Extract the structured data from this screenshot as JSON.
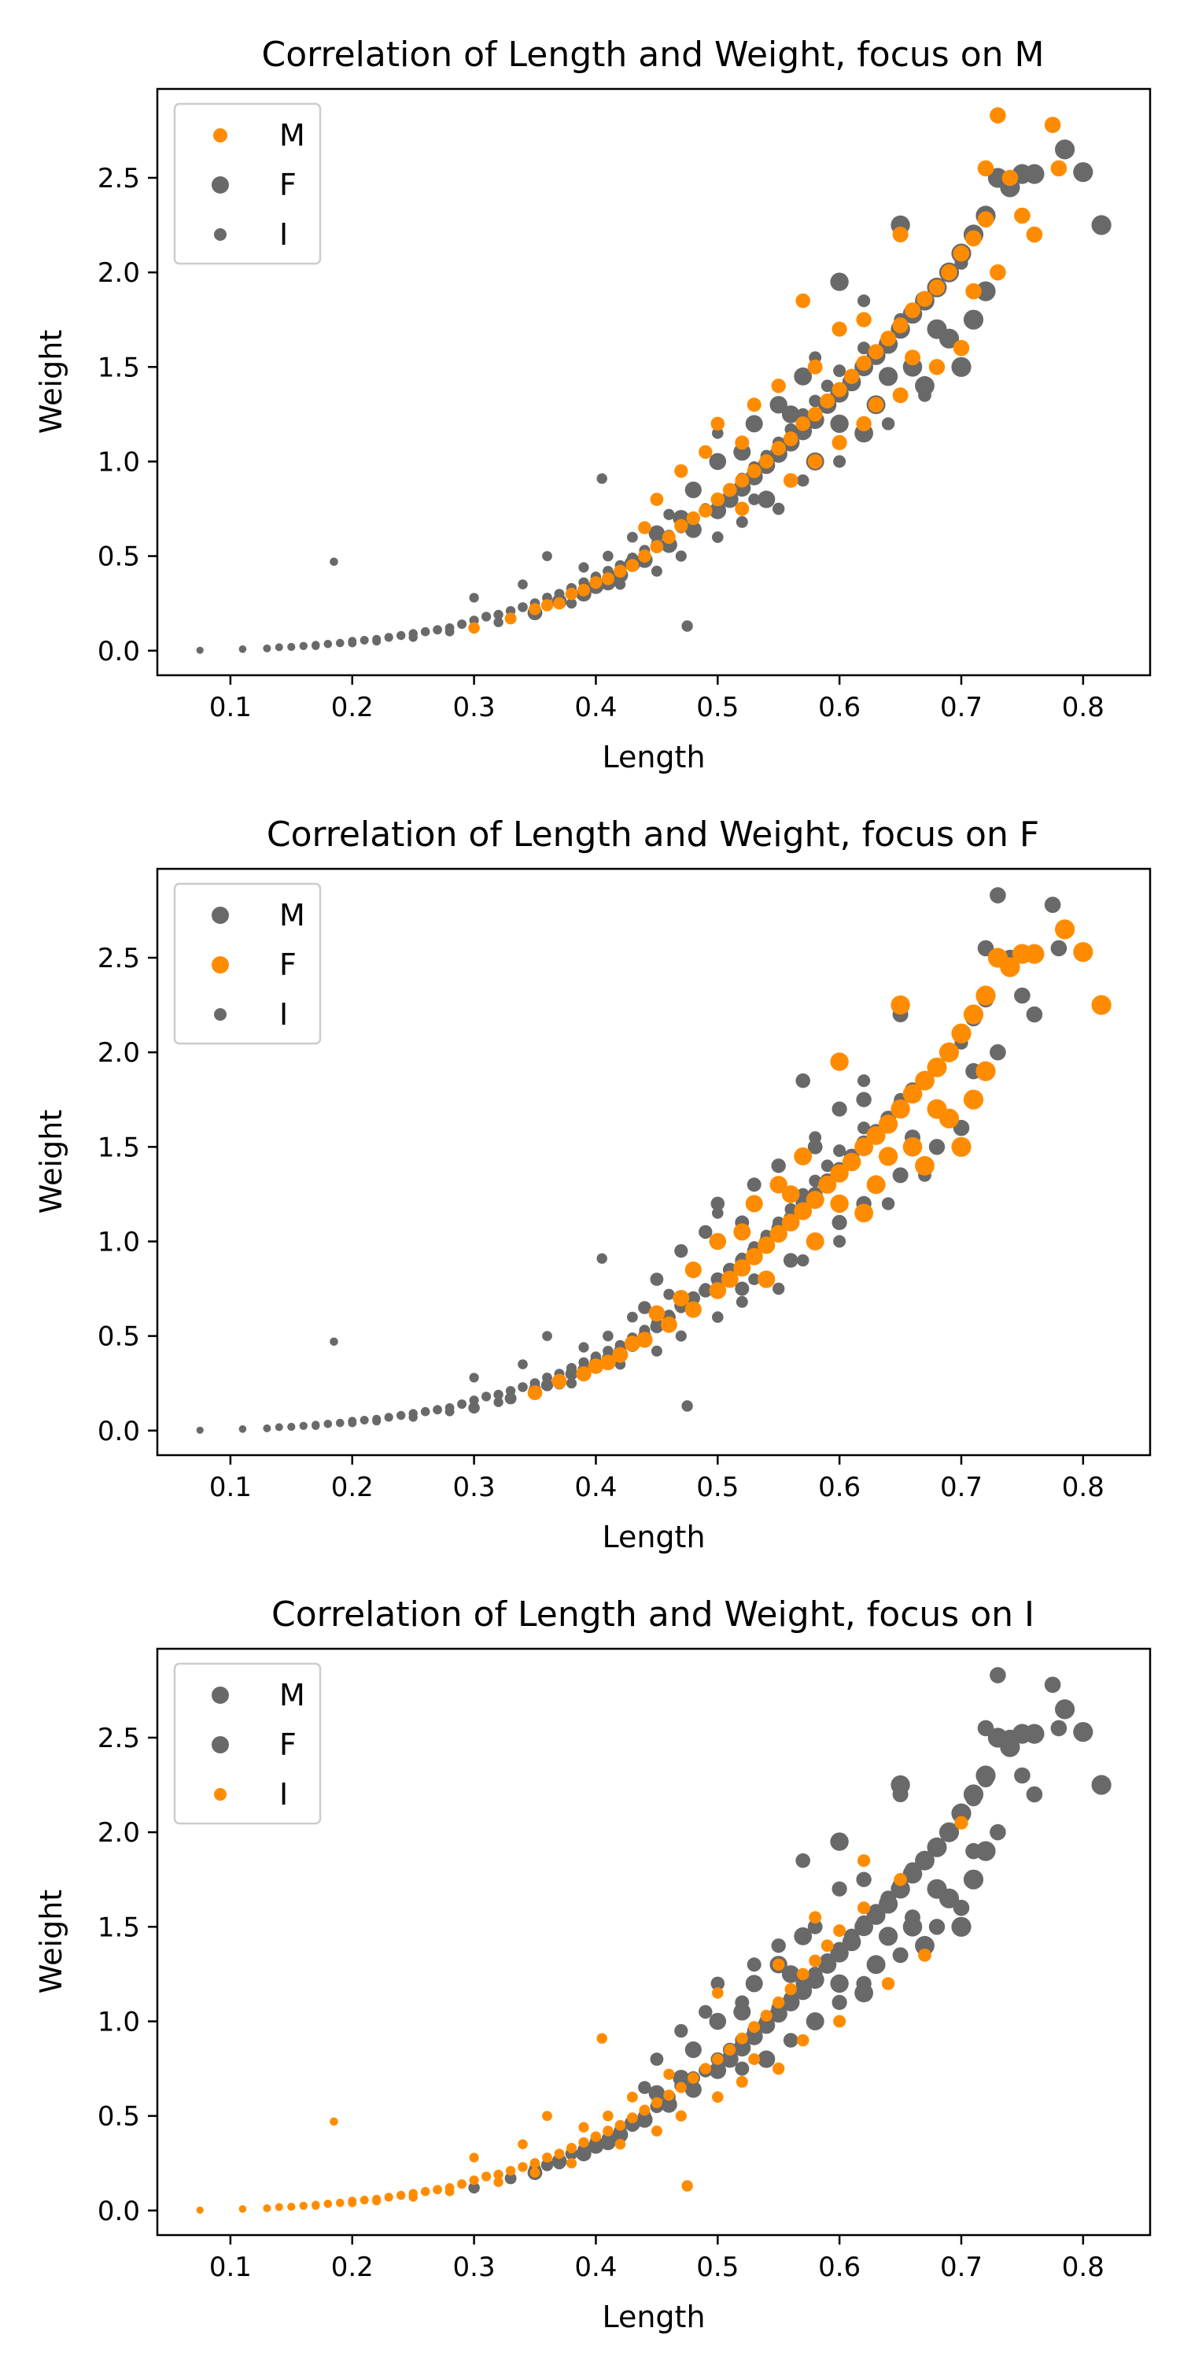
{
  "colors": {
    "highlight": "#ff8c00",
    "muted": "#696969"
  },
  "chart_data": [
    {
      "type": "scatter",
      "title": "Correlation of Length and Weight, focus on M",
      "xlabel": "Length",
      "ylabel": "Weight",
      "focus": "M",
      "xlim": [
        0.04,
        0.855
      ],
      "ylim": [
        -0.13,
        2.97
      ],
      "xticks": [
        "0.1",
        "0.2",
        "0.3",
        "0.4",
        "0.5",
        "0.6",
        "0.7",
        "0.8"
      ],
      "yticks": [
        "0.0",
        "0.5",
        "1.0",
        "1.5",
        "2.0",
        "2.5"
      ],
      "grid": false,
      "legend": "top-left",
      "legend_entries": [
        "M",
        "F",
        "I"
      ],
      "series": [
        {
          "name": "M",
          "color": "#ff8c00"
        },
        {
          "name": "F",
          "color": "#696969"
        },
        {
          "name": "I",
          "color": "#696969"
        }
      ]
    },
    {
      "type": "scatter",
      "title": "Correlation of Length and Weight, focus on F",
      "xlabel": "Length",
      "ylabel": "Weight",
      "focus": "F",
      "xlim": [
        0.04,
        0.855
      ],
      "ylim": [
        -0.13,
        2.97
      ],
      "xticks": [
        "0.1",
        "0.2",
        "0.3",
        "0.4",
        "0.5",
        "0.6",
        "0.7",
        "0.8"
      ],
      "yticks": [
        "0.0",
        "0.5",
        "1.0",
        "1.5",
        "2.0",
        "2.5"
      ],
      "grid": false,
      "legend": "top-left",
      "legend_entries": [
        "M",
        "F",
        "I"
      ],
      "series": [
        {
          "name": "M",
          "color": "#696969"
        },
        {
          "name": "F",
          "color": "#ff8c00"
        },
        {
          "name": "I",
          "color": "#696969"
        }
      ]
    },
    {
      "type": "scatter",
      "title": "Correlation of Length and Weight, focus on I",
      "xlabel": "Length",
      "ylabel": "Weight",
      "focus": "I",
      "xlim": [
        0.04,
        0.855
      ],
      "ylim": [
        -0.13,
        2.97
      ],
      "xticks": [
        "0.1",
        "0.2",
        "0.3",
        "0.4",
        "0.5",
        "0.6",
        "0.7",
        "0.8"
      ],
      "yticks": [
        "0.0",
        "0.5",
        "1.0",
        "1.5",
        "2.0",
        "2.5"
      ],
      "grid": false,
      "legend": "top-left",
      "legend_entries": [
        "M",
        "F",
        "I"
      ],
      "series": [
        {
          "name": "M",
          "color": "#696969"
        },
        {
          "name": "F",
          "color": "#696969"
        },
        {
          "name": "I",
          "color": "#ff8c00"
        }
      ]
    }
  ],
  "points": {
    "M": [
      [
        0.35,
        0.22
      ],
      [
        0.38,
        0.3
      ],
      [
        0.4,
        0.36
      ],
      [
        0.42,
        0.42
      ],
      [
        0.44,
        0.5
      ],
      [
        0.45,
        0.55
      ],
      [
        0.46,
        0.6
      ],
      [
        0.47,
        0.66
      ],
      [
        0.48,
        0.7
      ],
      [
        0.49,
        0.74
      ],
      [
        0.5,
        0.8
      ],
      [
        0.51,
        0.85
      ],
      [
        0.52,
        0.9
      ],
      [
        0.53,
        0.95
      ],
      [
        0.54,
        1.0
      ],
      [
        0.55,
        1.07
      ],
      [
        0.56,
        1.12
      ],
      [
        0.57,
        1.2
      ],
      [
        0.58,
        1.25
      ],
      [
        0.59,
        1.32
      ],
      [
        0.6,
        1.38
      ],
      [
        0.61,
        1.45
      ],
      [
        0.62,
        1.52
      ],
      [
        0.63,
        1.58
      ],
      [
        0.64,
        1.65
      ],
      [
        0.65,
        1.72
      ],
      [
        0.66,
        1.8
      ],
      [
        0.67,
        1.86
      ],
      [
        0.68,
        1.92
      ],
      [
        0.69,
        2.0
      ],
      [
        0.7,
        2.1
      ],
      [
        0.71,
        2.18
      ],
      [
        0.72,
        2.28
      ],
      [
        0.73,
        2.83
      ],
      [
        0.775,
        2.78
      ],
      [
        0.78,
        2.55
      ],
      [
        0.74,
        2.5
      ],
      [
        0.72,
        2.55
      ],
      [
        0.65,
        2.2
      ],
      [
        0.76,
        2.2
      ],
      [
        0.5,
        1.2
      ],
      [
        0.52,
        1.1
      ],
      [
        0.47,
        0.95
      ],
      [
        0.55,
        1.4
      ],
      [
        0.58,
        1.5
      ],
      [
        0.62,
        1.75
      ],
      [
        0.6,
        1.7
      ],
      [
        0.45,
        0.8
      ],
      [
        0.52,
        0.75
      ],
      [
        0.56,
        0.9
      ],
      [
        0.58,
        1.0
      ],
      [
        0.6,
        1.1
      ],
      [
        0.62,
        1.2
      ],
      [
        0.65,
        1.35
      ],
      [
        0.68,
        1.5
      ],
      [
        0.7,
        1.6
      ],
      [
        0.3,
        0.12
      ],
      [
        0.33,
        0.17
      ],
      [
        0.37,
        0.25
      ],
      [
        0.41,
        0.38
      ],
      [
        0.43,
        0.45
      ],
      [
        0.36,
        0.24
      ],
      [
        0.39,
        0.32
      ],
      [
        0.57,
        1.85
      ],
      [
        0.53,
        1.3
      ],
      [
        0.49,
        1.05
      ],
      [
        0.44,
        0.65
      ],
      [
        0.66,
        1.55
      ],
      [
        0.71,
        1.9
      ],
      [
        0.73,
        2.0
      ],
      [
        0.75,
        2.3
      ],
      [
        0.63,
        1.3
      ]
    ],
    "F": [
      [
        0.37,
        0.26
      ],
      [
        0.4,
        0.34
      ],
      [
        0.42,
        0.4
      ],
      [
        0.44,
        0.48
      ],
      [
        0.46,
        0.56
      ],
      [
        0.48,
        0.64
      ],
      [
        0.5,
        0.74
      ],
      [
        0.51,
        0.8
      ],
      [
        0.52,
        0.86
      ],
      [
        0.53,
        0.92
      ],
      [
        0.54,
        0.98
      ],
      [
        0.55,
        1.04
      ],
      [
        0.56,
        1.1
      ],
      [
        0.57,
        1.16
      ],
      [
        0.58,
        1.22
      ],
      [
        0.59,
        1.3
      ],
      [
        0.6,
        1.36
      ],
      [
        0.61,
        1.42
      ],
      [
        0.62,
        1.5
      ],
      [
        0.63,
        1.56
      ],
      [
        0.64,
        1.62
      ],
      [
        0.65,
        1.7
      ],
      [
        0.66,
        1.78
      ],
      [
        0.67,
        1.85
      ],
      [
        0.68,
        1.92
      ],
      [
        0.69,
        2.0
      ],
      [
        0.7,
        2.1
      ],
      [
        0.71,
        2.2
      ],
      [
        0.72,
        2.3
      ],
      [
        0.74,
        2.45
      ],
      [
        0.76,
        2.52
      ],
      [
        0.8,
        2.53
      ],
      [
        0.815,
        2.25
      ],
      [
        0.785,
        2.65
      ],
      [
        0.73,
        2.5
      ],
      [
        0.75,
        2.52
      ],
      [
        0.65,
        2.25
      ],
      [
        0.6,
        1.95
      ],
      [
        0.57,
        1.45
      ],
      [
        0.55,
        1.3
      ],
      [
        0.53,
        1.2
      ],
      [
        0.5,
        1.0
      ],
      [
        0.48,
        0.85
      ],
      [
        0.6,
        1.2
      ],
      [
        0.63,
        1.3
      ],
      [
        0.66,
        1.5
      ],
      [
        0.69,
        1.65
      ],
      [
        0.72,
        1.9
      ],
      [
        0.54,
        0.8
      ],
      [
        0.58,
        1.0
      ],
      [
        0.62,
        1.15
      ],
      [
        0.67,
        1.4
      ],
      [
        0.7,
        1.5
      ],
      [
        0.45,
        0.62
      ],
      [
        0.43,
        0.46
      ],
      [
        0.39,
        0.3
      ],
      [
        0.35,
        0.2
      ],
      [
        0.41,
        0.36
      ],
      [
        0.47,
        0.7
      ],
      [
        0.52,
        1.05
      ],
      [
        0.56,
        1.25
      ],
      [
        0.64,
        1.45
      ],
      [
        0.68,
        1.7
      ],
      [
        0.71,
        1.75
      ]
    ],
    "I": [
      [
        0.075,
        0.002
      ],
      [
        0.11,
        0.008
      ],
      [
        0.13,
        0.012
      ],
      [
        0.14,
        0.018
      ],
      [
        0.15,
        0.02
      ],
      [
        0.16,
        0.025
      ],
      [
        0.17,
        0.03
      ],
      [
        0.18,
        0.035
      ],
      [
        0.185,
        0.47
      ],
      [
        0.19,
        0.04
      ],
      [
        0.2,
        0.05
      ],
      [
        0.21,
        0.055
      ],
      [
        0.22,
        0.06
      ],
      [
        0.23,
        0.07
      ],
      [
        0.24,
        0.08
      ],
      [
        0.25,
        0.09
      ],
      [
        0.26,
        0.1
      ],
      [
        0.27,
        0.11
      ],
      [
        0.28,
        0.12
      ],
      [
        0.29,
        0.14
      ],
      [
        0.3,
        0.16
      ],
      [
        0.31,
        0.18
      ],
      [
        0.32,
        0.19
      ],
      [
        0.33,
        0.21
      ],
      [
        0.34,
        0.23
      ],
      [
        0.35,
        0.25
      ],
      [
        0.36,
        0.28
      ],
      [
        0.37,
        0.3
      ],
      [
        0.38,
        0.33
      ],
      [
        0.39,
        0.36
      ],
      [
        0.4,
        0.39
      ],
      [
        0.405,
        0.91
      ],
      [
        0.41,
        0.42
      ],
      [
        0.42,
        0.45
      ],
      [
        0.43,
        0.49
      ],
      [
        0.44,
        0.53
      ],
      [
        0.45,
        0.57
      ],
      [
        0.46,
        0.61
      ],
      [
        0.47,
        0.65
      ],
      [
        0.475,
        0.13
      ],
      [
        0.48,
        0.7
      ],
      [
        0.49,
        0.75
      ],
      [
        0.5,
        0.8
      ],
      [
        0.51,
        0.85
      ],
      [
        0.52,
        0.91
      ],
      [
        0.53,
        0.97
      ],
      [
        0.54,
        1.03
      ],
      [
        0.55,
        1.1
      ],
      [
        0.56,
        1.17
      ],
      [
        0.57,
        1.25
      ],
      [
        0.58,
        1.32
      ],
      [
        0.59,
        1.4
      ],
      [
        0.6,
        1.48
      ],
      [
        0.62,
        1.6
      ],
      [
        0.65,
        1.75
      ],
      [
        0.7,
        2.05
      ],
      [
        0.67,
        1.35
      ],
      [
        0.64,
        1.2
      ],
      [
        0.6,
        1.0
      ],
      [
        0.57,
        0.9
      ],
      [
        0.55,
        0.75
      ],
      [
        0.52,
        0.68
      ],
      [
        0.5,
        0.6
      ],
      [
        0.47,
        0.5
      ],
      [
        0.45,
        0.42
      ],
      [
        0.42,
        0.35
      ],
      [
        0.38,
        0.25
      ],
      [
        0.35,
        0.2
      ],
      [
        0.32,
        0.15
      ],
      [
        0.28,
        0.1
      ],
      [
        0.25,
        0.07
      ],
      [
        0.22,
        0.05
      ],
      [
        0.2,
        0.04
      ],
      [
        0.17,
        0.025
      ],
      [
        0.3,
        0.28
      ],
      [
        0.36,
        0.5
      ],
      [
        0.34,
        0.35
      ],
      [
        0.5,
        1.15
      ],
      [
        0.55,
        1.3
      ],
      [
        0.58,
        1.55
      ],
      [
        0.62,
        1.85
      ],
      [
        0.53,
        0.8
      ],
      [
        0.46,
        0.72
      ],
      [
        0.43,
        0.6
      ],
      [
        0.41,
        0.5
      ],
      [
        0.39,
        0.44
      ]
    ]
  }
}
